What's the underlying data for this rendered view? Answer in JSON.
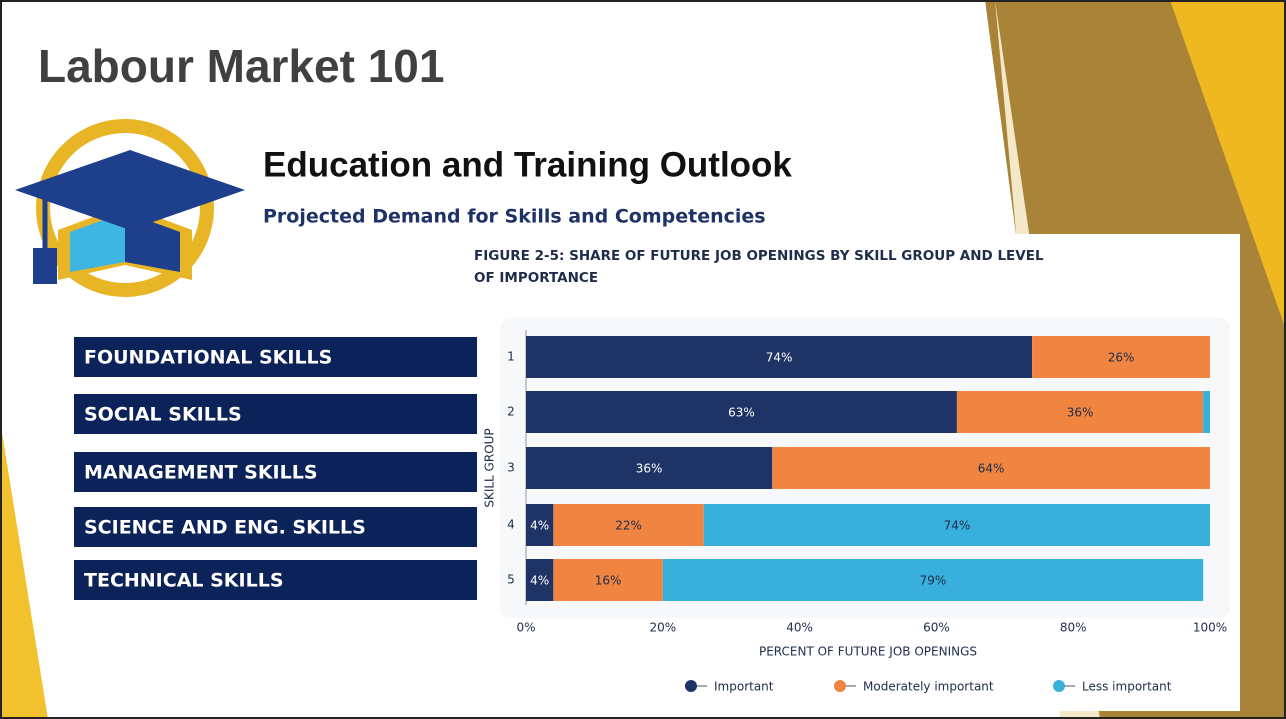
{
  "slide_title": "Labour Market 101",
  "heading": "Education and Training Outlook",
  "subheading": "Projected Demand for Skills and Competencies",
  "skill_labels": [
    "FOUNDATIONAL SKILLS",
    "SOCIAL SKILLS",
    "MANAGEMENT SKILLS",
    "SCIENCE AND ENG. SKILLS",
    "TECHNICAL SKILLS"
  ],
  "chart_data": {
    "type": "stacked-bar-horizontal",
    "title_lines": [
      "FIGURE 2-5: SHARE OF FUTURE JOB OPENINGS BY SKILL GROUP AND LEVEL",
      "OF IMPORTANCE"
    ],
    "x_label": "PERCENT OF FUTURE JOB OPENINGS",
    "y_label": "SKILL GROUP",
    "categories": [
      "1",
      "2",
      "3",
      "4",
      "5"
    ],
    "series": [
      {
        "name": "Important",
        "color": "#1f3466",
        "values": [
          74,
          63,
          36,
          4,
          4
        ],
        "value_labels": [
          "74%",
          "63%",
          "36%",
          "4%",
          "4%"
        ],
        "label_color": "#ffffff"
      },
      {
        "name": "Moderately important",
        "color": "#f08541",
        "values": [
          26,
          36,
          64,
          22,
          16
        ],
        "value_labels": [
          "26%",
          "36%",
          "64%",
          "22%",
          "16%"
        ],
        "label_color": "#1f2d4a"
      },
      {
        "name": "Less important",
        "color": "#38b0db",
        "values": [
          0,
          1,
          0,
          74,
          79
        ],
        "value_labels": [
          null,
          null,
          null,
          "74%",
          "79%"
        ],
        "label_color": "#1f2d4a"
      }
    ],
    "xlim": [
      0,
      100
    ],
    "xticks": [
      {
        "value": 0,
        "label": "0%"
      },
      {
        "value": 20,
        "label": "20%"
      },
      {
        "value": 40,
        "label": "40%"
      },
      {
        "value": 60,
        "label": "60%"
      },
      {
        "value": 80,
        "label": "80%"
      },
      {
        "value": 100,
        "label": "100%"
      }
    ],
    "grid": false,
    "legend": "bottom"
  }
}
